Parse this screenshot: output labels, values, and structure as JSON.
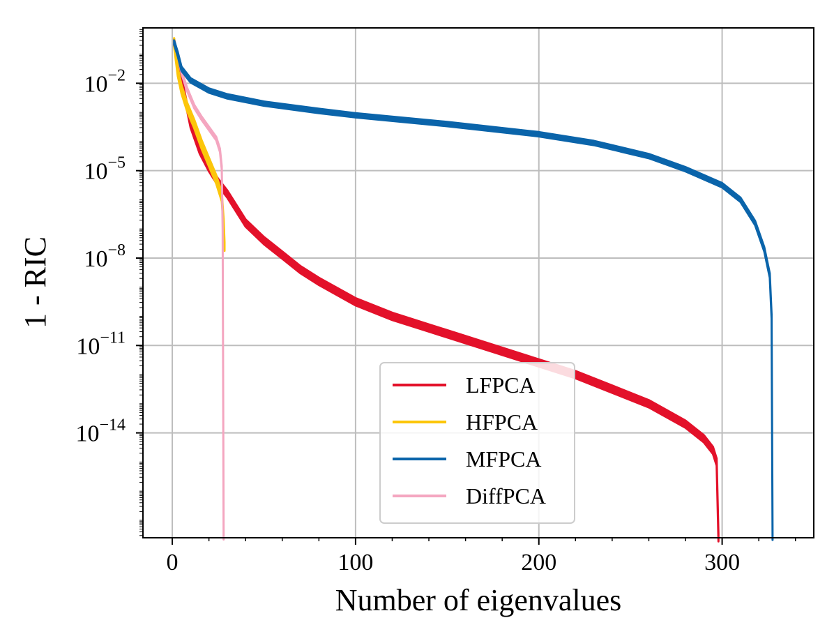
{
  "chart_data": {
    "type": "line",
    "title": "",
    "xlabel": "Number of eigenvalues",
    "ylabel": "1 - RIC",
    "xlim": [
      -16,
      350
    ],
    "ylim_log10": [
      -17.6,
      -0.1
    ],
    "yscale": "log",
    "grid": true,
    "legend_position": "lower-center",
    "x_ticks": [
      0,
      100,
      200,
      300
    ],
    "x_tick_labels": [
      "0",
      "100",
      "200",
      "300"
    ],
    "y_ticks_exponent": [
      -2,
      -5,
      -8,
      -11,
      -14
    ],
    "y_tick_labels": [
      {
        "base": "10",
        "exp": "−2"
      },
      {
        "base": "10",
        "exp": "−5"
      },
      {
        "base": "10",
        "exp": "−8"
      },
      {
        "base": "10",
        "exp": "−11"
      },
      {
        "base": "10",
        "exp": "−14"
      }
    ],
    "series": [
      {
        "name": "LFPCA",
        "color": "#e3112a",
        "points_log10": [
          [
            1,
            -0.6
          ],
          [
            3,
            -1.2
          ],
          [
            5,
            -1.9
          ],
          [
            8,
            -2.8
          ],
          [
            10,
            -3.4
          ],
          [
            15,
            -4.3
          ],
          [
            20,
            -4.9
          ],
          [
            25,
            -5.4
          ],
          [
            30,
            -5.8
          ],
          [
            40,
            -6.8
          ],
          [
            50,
            -7.4
          ],
          [
            60,
            -7.9
          ],
          [
            70,
            -8.4
          ],
          [
            80,
            -8.8
          ],
          [
            100,
            -9.5
          ],
          [
            120,
            -10.0
          ],
          [
            140,
            -10.4
          ],
          [
            160,
            -10.8
          ],
          [
            180,
            -11.2
          ],
          [
            200,
            -11.6
          ],
          [
            220,
            -12.0
          ],
          [
            240,
            -12.5
          ],
          [
            260,
            -13.0
          ],
          [
            280,
            -13.7
          ],
          [
            290,
            -14.2
          ],
          [
            295,
            -14.6
          ],
          [
            297,
            -15.0
          ],
          [
            298,
            -17.6
          ]
        ],
        "band_width": 0.25
      },
      {
        "name": "HFPCA",
        "color": "#fcc60a",
        "points_log10": [
          [
            1,
            -0.6
          ],
          [
            3,
            -1.6
          ],
          [
            5,
            -2.2
          ],
          [
            8,
            -2.8
          ],
          [
            12,
            -3.4
          ],
          [
            16,
            -4.1
          ],
          [
            20,
            -4.7
          ],
          [
            24,
            -5.3
          ],
          [
            27,
            -5.9
          ],
          [
            28,
            -6.8
          ],
          [
            28.5,
            -7.6
          ]
        ],
        "band_width": 0.3
      },
      {
        "name": "MFPCA",
        "color": "#0a64aa",
        "points_log10": [
          [
            1,
            -0.6
          ],
          [
            3,
            -1.0
          ],
          [
            5,
            -1.5
          ],
          [
            10,
            -1.9
          ],
          [
            20,
            -2.25
          ],
          [
            30,
            -2.45
          ],
          [
            50,
            -2.7
          ],
          [
            80,
            -2.95
          ],
          [
            100,
            -3.1
          ],
          [
            150,
            -3.4
          ],
          [
            200,
            -3.75
          ],
          [
            230,
            -4.05
          ],
          [
            260,
            -4.5
          ],
          [
            280,
            -4.95
          ],
          [
            300,
            -5.5
          ],
          [
            310,
            -6.0
          ],
          [
            318,
            -6.8
          ],
          [
            323,
            -7.7
          ],
          [
            326,
            -8.6
          ],
          [
            327,
            -10.0
          ],
          [
            327.5,
            -17.6
          ]
        ],
        "band_width": 0.15
      },
      {
        "name": "DiffPCA",
        "color": "#f4a6c0",
        "points_log10": [
          [
            1,
            -0.6
          ],
          [
            3,
            -1.0
          ],
          [
            5,
            -1.6
          ],
          [
            8,
            -2.2
          ],
          [
            12,
            -2.8
          ],
          [
            16,
            -3.2
          ],
          [
            20,
            -3.55
          ],
          [
            24,
            -3.9
          ],
          [
            26,
            -4.3
          ],
          [
            27,
            -4.9
          ],
          [
            27.5,
            -7.0
          ],
          [
            28,
            -17.6
          ]
        ],
        "band_width": 0.12
      }
    ]
  }
}
